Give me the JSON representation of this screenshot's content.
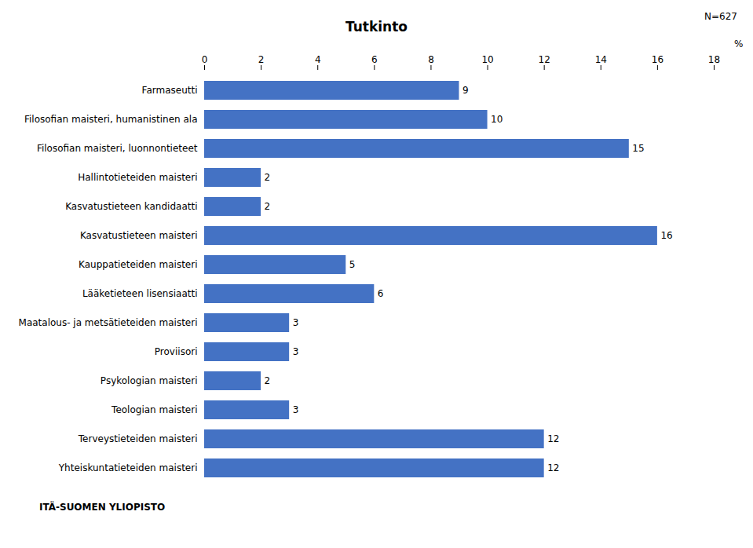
{
  "chart_data": {
    "type": "bar",
    "title": "Tutkinto",
    "orientation": "horizontal",
    "categories": [
      "Farmaseutti",
      "Filosofian maisteri, humanistinen ala",
      "Filosofian maisteri, luonnontieteet",
      "Hallintotieteiden maisteri",
      "Kasvatustieteen kandidaatti",
      "Kasvatustieteen maisteri",
      "Kauppatieteiden maisteri",
      "Lääketieteen lisensiaatti",
      "Maatalous- ja metsätieteiden maisteri",
      "Proviisori",
      "Psykologian maisteri",
      "Teologian maisteri",
      "Terveystieteiden maisteri",
      "Yhteiskuntatieteiden maisteri"
    ],
    "values": [
      9,
      10,
      15,
      2,
      2,
      16,
      5,
      6,
      3,
      3,
      2,
      3,
      12,
      12
    ],
    "color": "#4472C4",
    "xlim": [
      0,
      18
    ],
    "xticks": [
      0,
      2,
      4,
      6,
      8,
      10,
      12,
      14,
      16,
      18
    ],
    "xlabel": "%",
    "data_labels": true,
    "grid": false,
    "annotations": [
      "N=627",
      "ITÄ-SUOMEN YLIOPISTO"
    ]
  }
}
